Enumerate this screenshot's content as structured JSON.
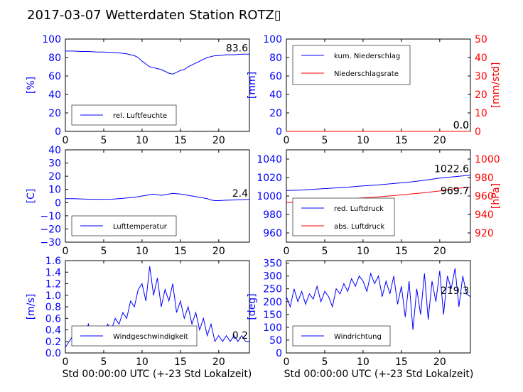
{
  "title": "2017-03-07 Wetterdaten Station ROTZ▯",
  "xlabel_common": "Std 00:00:00 UTC (+-23 Std Lokalzeit)",
  "colors": {
    "blue": "#0000ff",
    "red": "#ff0000",
    "frame": "#000000"
  },
  "chart_data": [
    {
      "id": "humidity",
      "type": "line",
      "xlim": [
        0,
        24
      ],
      "ylim": [
        0,
        100
      ],
      "xticks": [
        "0",
        "5",
        "10",
        "15",
        "20"
      ],
      "yticks": [
        "0",
        "20",
        "40",
        "60",
        "80",
        "100"
      ],
      "ylabel": "[%]",
      "legend": {
        "placement": "lower-left",
        "entries": [
          "rel. Luftfeuchte"
        ]
      },
      "last_value_label": "83.6",
      "series": [
        {
          "name": "rel. Luftfeuchte",
          "color": "#0000ff",
          "x": [
            0,
            1,
            2,
            3,
            4,
            5,
            6,
            7,
            8,
            9,
            9.5,
            10,
            10.5,
            11,
            11.5,
            12,
            12.5,
            13,
            13.5,
            14,
            14.5,
            15,
            15.5,
            16,
            16.5,
            17,
            17.5,
            18,
            18.5,
            19,
            19.5,
            20,
            21,
            22,
            23,
            24
          ],
          "y": [
            87,
            87,
            86.5,
            86.5,
            86,
            86,
            85.5,
            85,
            84,
            82,
            80,
            76,
            73,
            70,
            69,
            68,
            67,
            65,
            63,
            62,
            64,
            66,
            67,
            70,
            72,
            74,
            76,
            78,
            80,
            81,
            82,
            82,
            83,
            83,
            83.6,
            83.6
          ]
        }
      ]
    },
    {
      "id": "precip",
      "type": "line",
      "xlim": [
        0,
        24
      ],
      "ylim": [
        0,
        100
      ],
      "ylim_right": [
        0,
        50
      ],
      "xticks": [
        "0",
        "5",
        "10",
        "15",
        "20"
      ],
      "yticks": [
        "0",
        "20",
        "40",
        "60",
        "80",
        "100"
      ],
      "yticks_right": [
        "0",
        "10",
        "20",
        "30",
        "40",
        "50"
      ],
      "ylabel": "[mm]",
      "ylabel_right": "[mm/std]",
      "legend": {
        "placement": "upper-left",
        "entries": [
          "kum. Niederschlag",
          "Niederschlagsrate"
        ]
      },
      "last_value_labels": [
        "0.0",
        "0.0"
      ],
      "series": [
        {
          "name": "kum. Niederschlag",
          "color": "#0000ff",
          "axis": "left",
          "x": [
            0,
            3,
            6,
            9,
            12,
            15,
            18,
            21,
            24
          ],
          "y": [
            0,
            0,
            0,
            0,
            0,
            0,
            0,
            0,
            0
          ]
        },
        {
          "name": "Niederschlagsrate",
          "color": "#ff0000",
          "axis": "right",
          "x": [
            0,
            3,
            6,
            9,
            12,
            15,
            18,
            21,
            24
          ],
          "y": [
            0,
            0,
            0,
            0,
            0,
            0,
            0,
            0,
            0
          ]
        }
      ]
    },
    {
      "id": "temperature",
      "type": "line",
      "xlim": [
        0,
        24
      ],
      "ylim": [
        -30,
        40
      ],
      "xticks": [
        "0",
        "5",
        "10",
        "15",
        "20"
      ],
      "yticks": [
        "−30",
        "−20",
        "−10",
        "0",
        "10",
        "20",
        "30",
        "40"
      ],
      "ylabel": "[C]",
      "legend": {
        "placement": "lower-left",
        "entries": [
          "Lufttemperatur"
        ]
      },
      "last_value_label": "2.4",
      "series": [
        {
          "name": "Lufttemperatur",
          "color": "#0000ff",
          "x": [
            0,
            1,
            2,
            3,
            4,
            5,
            6,
            7,
            8,
            9,
            10,
            10.5,
            11,
            11.5,
            12,
            12.5,
            13,
            13.5,
            14,
            14.5,
            15,
            15.5,
            16,
            16.5,
            17,
            17.5,
            18,
            18.5,
            19,
            19.5,
            20,
            21,
            22,
            23,
            24
          ],
          "y": [
            3,
            3,
            2.8,
            2.6,
            2.5,
            2.5,
            2.6,
            3,
            3.5,
            4,
            5,
            5.5,
            6,
            6.5,
            6,
            5.5,
            6,
            6.5,
            7,
            6.8,
            6.5,
            6,
            5.5,
            5,
            4.5,
            4,
            3.5,
            3,
            2,
            1.5,
            1.5,
            1.8,
            2,
            2.2,
            2.4
          ]
        }
      ]
    },
    {
      "id": "pressure",
      "type": "line",
      "xlim": [
        0,
        24
      ],
      "ylim": [
        950,
        1050
      ],
      "ylim_right": [
        910,
        1010
      ],
      "xticks": [
        "0",
        "5",
        "10",
        "15",
        "20"
      ],
      "yticks": [
        "960",
        "980",
        "1000",
        "1020",
        "1040"
      ],
      "yticks_right": [
        "920",
        "940",
        "960",
        "980",
        "1000"
      ],
      "ylabel_right": "[hPa]",
      "legend": {
        "placement": "lower-left",
        "entries": [
          "red. Luftdruck",
          "abs. Luftdruck"
        ]
      },
      "last_value_labels": [
        "1022.6",
        "969.7"
      ],
      "series": [
        {
          "name": "red. Luftdruck",
          "color": "#0000ff",
          "axis": "left",
          "x": [
            0,
            2,
            4,
            6,
            8,
            10,
            12,
            14,
            16,
            18,
            20,
            22,
            24
          ],
          "y": [
            1006,
            1006.5,
            1007.5,
            1008.5,
            1009.5,
            1011,
            1012,
            1013.5,
            1015,
            1017,
            1019.5,
            1021,
            1022.6
          ]
        },
        {
          "name": "abs. Luftdruck",
          "color": "#ff0000",
          "axis": "right",
          "x": [
            0,
            2,
            4,
            6,
            8,
            10,
            12,
            14,
            16,
            18,
            20,
            22,
            24
          ],
          "y": [
            953,
            953.5,
            954.5,
            955.5,
            956.5,
            958,
            959,
            960.5,
            962,
            963.5,
            965.5,
            968,
            969.7
          ]
        }
      ]
    },
    {
      "id": "wind_speed",
      "type": "line",
      "xlim": [
        0,
        24
      ],
      "ylim": [
        0,
        1.6
      ],
      "xticks": [
        "0",
        "5",
        "10",
        "15",
        "20"
      ],
      "yticks": [
        "0.0",
        "0.2",
        "0.4",
        "0.6",
        "0.8",
        "1.0",
        "1.2",
        "1.4",
        "1.6"
      ],
      "ylabel": "[m/s]",
      "xlabel": "Std 00:00:00 UTC (+-23 Std Lokalzeit)",
      "legend": {
        "placement": "lower-left",
        "entries": [
          "Windgeschwindigkeit"
        ]
      },
      "last_value_label": "0.2",
      "series": [
        {
          "name": "Windgeschwindigkeit",
          "color": "#0000ff",
          "x": [
            0,
            0.5,
            1,
            1.5,
            2,
            2.5,
            3,
            3.5,
            4,
            4.5,
            5,
            5.5,
            6,
            6.5,
            7,
            7.5,
            8,
            8.5,
            9,
            9.5,
            10,
            10.5,
            11,
            11.5,
            12,
            12.5,
            13,
            13.5,
            14,
            14.5,
            15,
            15.5,
            16,
            16.5,
            17,
            17.5,
            18,
            18.5,
            19,
            19.5,
            20,
            20.5,
            21,
            21.5,
            22,
            22.5,
            23,
            23.5,
            24
          ],
          "y": [
            0.1,
            0.2,
            0.3,
            0.2,
            0.4,
            0.3,
            0.5,
            0.2,
            0.3,
            0.4,
            0.3,
            0.5,
            0.4,
            0.6,
            0.5,
            0.7,
            0.6,
            0.9,
            0.8,
            1.1,
            1.2,
            0.9,
            1.5,
            1.0,
            1.3,
            0.8,
            1.1,
            0.9,
            1.2,
            0.7,
            0.9,
            0.6,
            0.8,
            0.5,
            0.7,
            0.4,
            0.6,
            0.3,
            0.5,
            0.2,
            0.3,
            0.2,
            0.3,
            0.2,
            0.3,
            0.2,
            0.3,
            0.2,
            0.2
          ]
        }
      ]
    },
    {
      "id": "wind_dir",
      "type": "line",
      "xlim": [
        0,
        24
      ],
      "ylim": [
        0,
        360
      ],
      "xticks": [
        "0",
        "5",
        "10",
        "15",
        "20"
      ],
      "yticks": [
        "0",
        "50",
        "100",
        "150",
        "200",
        "250",
        "300",
        "350"
      ],
      "ylabel": "[deg]",
      "xlabel": "Std 00:00:00 UTC (+-23 Std Lokalzeit)",
      "legend": {
        "placement": "lower-left",
        "entries": [
          "Windrichtung"
        ]
      },
      "last_value_label": "219.3",
      "series": [
        {
          "name": "Windrichtung",
          "color": "#0000ff",
          "x": [
            0,
            0.5,
            1,
            1.5,
            2,
            2.5,
            3,
            3.5,
            4,
            4.5,
            5,
            5.5,
            6,
            6.5,
            7,
            7.5,
            8,
            8.5,
            9,
            9.5,
            10,
            10.5,
            11,
            11.5,
            12,
            12.5,
            13,
            13.5,
            14,
            14.5,
            15,
            15.5,
            16,
            16.5,
            17,
            17.5,
            18,
            18.5,
            19,
            19.5,
            20,
            20.5,
            21,
            21.5,
            22,
            22.5,
            23,
            23.5,
            24
          ],
          "y": [
            220,
            180,
            250,
            200,
            240,
            190,
            230,
            210,
            260,
            200,
            240,
            220,
            180,
            250,
            230,
            270,
            240,
            290,
            260,
            300,
            280,
            240,
            310,
            270,
            300,
            220,
            280,
            230,
            300,
            190,
            260,
            140,
            280,
            90,
            250,
            150,
            310,
            130,
            280,
            200,
            320,
            150,
            300,
            250,
            330,
            180,
            300,
            230,
            219.3
          ]
        }
      ]
    }
  ]
}
